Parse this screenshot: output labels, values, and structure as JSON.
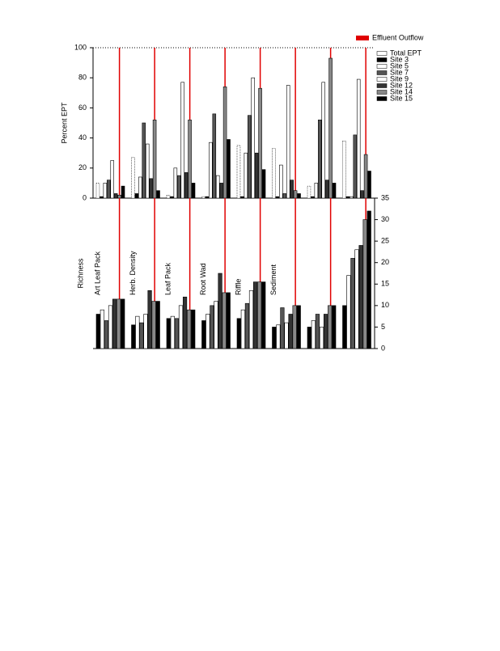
{
  "chart_data": [
    {
      "type": "bar",
      "ylabel": "Percent EPT",
      "ylim": [
        0,
        100
      ],
      "yticks": [
        0,
        20,
        40,
        60,
        80,
        100
      ],
      "y_axis_side": "left",
      "reference_line": {
        "name": "Effluent  Outflow",
        "color": "#e00000"
      },
      "series": [
        {
          "name": "Total  EPT",
          "color": "#ffffff",
          "values": [
            10,
            27,
            2,
            1,
            35,
            33,
            8,
            38
          ]
        },
        {
          "name": "Site  3",
          "color": "#000000",
          "values": [
            1,
            3,
            1,
            1,
            1,
            1,
            1,
            1
          ]
        },
        {
          "name": "Site  5",
          "color": "#ffffff",
          "values": [
            10,
            14,
            20,
            37,
            30,
            22,
            10,
            1
          ]
        },
        {
          "name": "Site  7",
          "color": "#555555",
          "values": [
            12,
            50,
            15,
            56,
            55,
            3,
            52,
            42
          ]
        },
        {
          "name": "Site  9",
          "color": "#ffffff",
          "values": [
            25,
            36,
            77,
            15,
            80,
            75,
            77,
            79
          ]
        },
        {
          "name": "Site  12",
          "color": "#333333",
          "values": [
            3,
            13,
            17,
            10,
            30,
            12,
            12,
            5
          ]
        },
        {
          "name": "Site  14",
          "color": "#888888",
          "values": [
            2,
            52,
            52,
            74,
            73,
            5,
            93,
            29
          ]
        },
        {
          "name": "Site  15",
          "color": "#000000",
          "values": [
            8,
            5,
            10,
            39,
            19,
            3,
            10,
            18
          ]
        }
      ]
    },
    {
      "type": "bar",
      "ylabel": "Richness",
      "ylim": [
        0,
        35
      ],
      "yticks": [
        0,
        5,
        10,
        15,
        20,
        25,
        30,
        35
      ],
      "y_axis_side": "right",
      "categories": [
        "Art Leaf Pack",
        "Herb. Density",
        "Leaf Pack",
        "Root Wad",
        "Riffle",
        "Sediment",
        null,
        null
      ],
      "series": [
        {
          "name": "Site  3",
          "color": "#000000",
          "values": [
            8,
            5.5,
            7,
            6.5,
            7,
            5,
            5,
            10
          ]
        },
        {
          "name": "Site  5",
          "color": "#ffffff",
          "values": [
            9,
            7.5,
            7.5,
            8,
            9,
            5.5,
            6.5,
            17
          ]
        },
        {
          "name": "Site  7",
          "color": "#555555",
          "values": [
            6.5,
            6,
            7,
            10,
            10.5,
            9.5,
            8,
            21
          ]
        },
        {
          "name": "Site  9",
          "color": "#ffffff",
          "values": [
            10,
            8,
            10,
            11,
            13.5,
            6,
            5,
            23
          ]
        },
        {
          "name": "Site  12",
          "color": "#333333",
          "values": [
            11.5,
            13.5,
            12,
            17.5,
            15.5,
            8,
            8,
            24
          ]
        },
        {
          "name": "Site  14",
          "color": "#888888",
          "values": [
            11.5,
            11,
            9,
            13,
            15.5,
            10,
            10,
            30
          ]
        },
        {
          "name": "Site  15",
          "color": "#000000",
          "values": [
            11.5,
            11,
            9,
            13,
            15.5,
            10,
            10,
            32
          ]
        }
      ]
    }
  ]
}
